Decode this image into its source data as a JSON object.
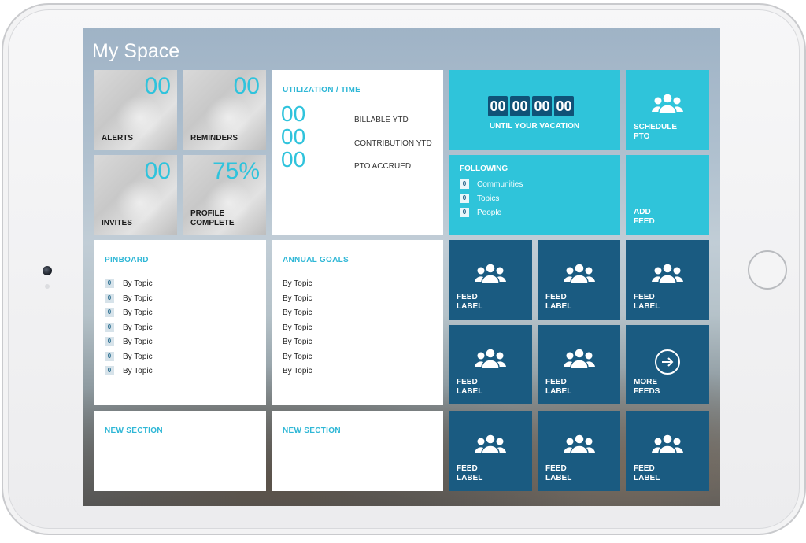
{
  "app": {
    "title": "My Space"
  },
  "stats": {
    "alerts": {
      "value": "00",
      "label": "ALERTS"
    },
    "reminders": {
      "value": "00",
      "label": "REMINDERS"
    },
    "invites": {
      "value": "00",
      "label": "INVITES"
    },
    "profile": {
      "value": "75%",
      "label": "PROFILE\nCOMPLETE"
    }
  },
  "utilization": {
    "title": "UTILIZATION / TIME",
    "rows": [
      {
        "value": "00",
        "label": "BILLABLE YTD"
      },
      {
        "value": "00",
        "label": "CONTRIBUTION YTD"
      },
      {
        "value": "00",
        "label": "PTO ACCRUED"
      }
    ]
  },
  "vacation": {
    "digits": [
      "00",
      "00",
      "00",
      "00"
    ],
    "label": "UNTIL YOUR VACATION"
  },
  "schedule_pto": {
    "label": "SCHEDULE\nPTO",
    "icon": "group-icon"
  },
  "following": {
    "title": "FOLLOWING",
    "items": [
      {
        "count": "0",
        "label": "Communities"
      },
      {
        "count": "0",
        "label": "Topics"
      },
      {
        "count": "0",
        "label": "People"
      }
    ]
  },
  "add_feed": {
    "label": "ADD\nFEED"
  },
  "pinboard": {
    "title": "PINBOARD",
    "items": [
      {
        "count": "0",
        "label": "By Topic"
      },
      {
        "count": "0",
        "label": "By Topic"
      },
      {
        "count": "0",
        "label": "By Topic"
      },
      {
        "count": "0",
        "label": "By Topic"
      },
      {
        "count": "0",
        "label": "By Topic"
      },
      {
        "count": "0",
        "label": "By Topic"
      },
      {
        "count": "0",
        "label": "By Topic"
      }
    ]
  },
  "annual_goals": {
    "title": "ANNUAL GOALS",
    "items": [
      "By Topic",
      "By Topic",
      "By Topic",
      "By Topic",
      "By Topic",
      "By Topic",
      "By Topic"
    ]
  },
  "new_sections": [
    "NEW SECTION",
    "NEW SECTION"
  ],
  "feeds": {
    "label": "FEED\nLABEL",
    "more_label": "MORE\nFEEDS",
    "icon": "group-icon",
    "more_icon": "arrow-right-circle-icon"
  },
  "colors": {
    "accent": "#2fc3dc",
    "cyan_tile": "#2fc4da",
    "dark_tile": "#1a5b81"
  }
}
